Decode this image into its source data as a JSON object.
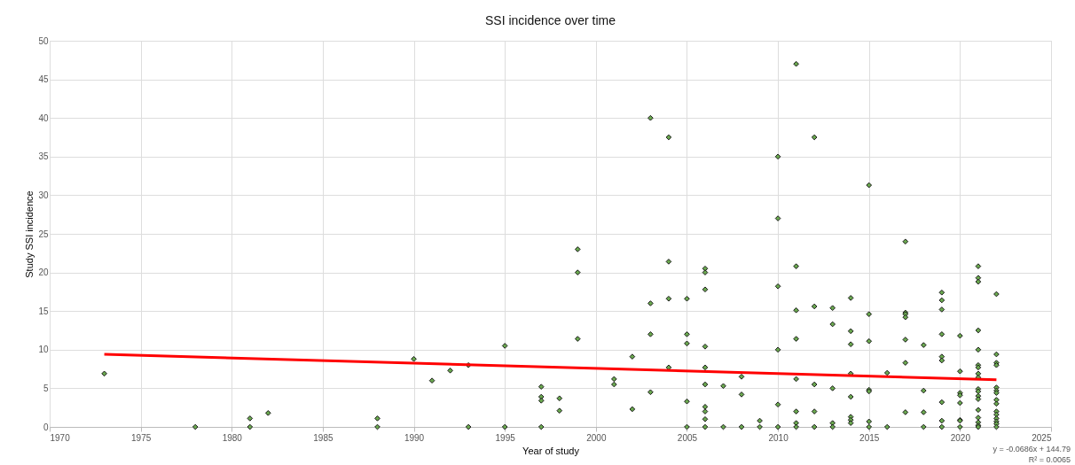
{
  "chart_data": {
    "type": "scatter",
    "title": "SSI incidence over time",
    "xlabel": "Year of study",
    "ylabel": "Study SSI incidence",
    "xlim": [
      1970,
      2025
    ],
    "xticks": [
      1970,
      1975,
      1980,
      1985,
      1990,
      1995,
      2000,
      2005,
      2010,
      2015,
      2020,
      2025
    ],
    "ylim": [
      0,
      50
    ],
    "yticks": [
      0,
      5,
      10,
      15,
      20,
      25,
      30,
      35,
      40,
      45,
      50
    ],
    "grid": true,
    "annotations": [
      "y = -0.0686x + 144.79",
      "R² = 0.0065"
    ],
    "series": [
      {
        "color": "#6aa84f",
        "marker": "diamond",
        "x": [
          1973,
          1978,
          1981,
          1981,
          1982,
          1988,
          1988,
          1990,
          1991,
          1992,
          1993,
          1993,
          1995,
          1995,
          1997,
          1997,
          1997,
          1997,
          1998,
          1998,
          1999,
          1999,
          1999,
          2001,
          2001,
          2002,
          2002,
          2003,
          2003,
          2003,
          2003,
          2004,
          2004,
          2004,
          2004,
          2005,
          2005,
          2005,
          2005,
          2005,
          2006,
          2006,
          2006,
          2006,
          2006,
          2006,
          2006,
          2006,
          2006,
          2006,
          2007,
          2007,
          2008,
          2008,
          2008,
          2009,
          2009,
          2010,
          2010,
          2010,
          2010,
          2010,
          2010,
          2011,
          2011,
          2011,
          2011,
          2011,
          2011,
          2011,
          2011,
          2012,
          2012,
          2012,
          2012,
          2012,
          2013,
          2013,
          2013,
          2013,
          2013,
          2014,
          2014,
          2014,
          2014,
          2014,
          2014,
          2014,
          2014,
          2015,
          2015,
          2015,
          2015,
          2015,
          2015,
          2015,
          2016,
          2016,
          2017,
          2017,
          2017,
          2017,
          2017,
          2017,
          2017,
          2018,
          2018,
          2018,
          2018,
          2019,
          2019,
          2019,
          2019,
          2019,
          2019,
          2019,
          2019,
          2019,
          2020,
          2020,
          2020,
          2020,
          2020,
          2020,
          2020,
          2020,
          2021,
          2021,
          2021,
          2021,
          2021,
          2021,
          2021,
          2021,
          2021,
          2021,
          2021,
          2021,
          2021,
          2021,
          2021,
          2021,
          2021,
          2021,
          2022,
          2022,
          2022,
          2022,
          2022,
          2022,
          2022,
          2022,
          2022,
          2022,
          2022,
          2022,
          2022,
          2022,
          2022
        ],
        "values": [
          6.9,
          0,
          0,
          1.1,
          1.8,
          0,
          1.1,
          8.8,
          6,
          7.3,
          8,
          0,
          10.5,
          0,
          5.2,
          3.9,
          3.4,
          0,
          3.7,
          2.1,
          23,
          20,
          11.4,
          6.2,
          5.5,
          9.1,
          2.3,
          40,
          16,
          12,
          4.5,
          37.5,
          21.4,
          16.6,
          7.7,
          16.6,
          12,
          10.8,
          3.3,
          0,
          20.5,
          20,
          17.8,
          10.4,
          7.7,
          5.5,
          2.6,
          2,
          1,
          0,
          5.3,
          0,
          6.5,
          4.2,
          0,
          0.8,
          0,
          35,
          27,
          18.2,
          10,
          2.9,
          0,
          47,
          20.8,
          15.1,
          11.4,
          6.2,
          2,
          0.5,
          0,
          37.5,
          15.6,
          5.5,
          2,
          0,
          15.4,
          13.3,
          5,
          0.5,
          0,
          16.7,
          12.4,
          10.7,
          6.9,
          3.9,
          1.3,
          0.9,
          0.5,
          31.3,
          14.6,
          11.1,
          4.8,
          4.6,
          0.7,
          0,
          7,
          0,
          24,
          14.8,
          14.6,
          14.2,
          11.3,
          8.3,
          1.9,
          10.6,
          4.7,
          1.9,
          0,
          17.4,
          16.4,
          15.2,
          12,
          9.1,
          8.6,
          3.2,
          0.8,
          0,
          11.8,
          7.2,
          4.4,
          4.1,
          3.1,
          0.9,
          0.8,
          0,
          20.8,
          19.3,
          18.8,
          12.5,
          10,
          8,
          7.7,
          6.9,
          6.4,
          4.9,
          4.6,
          4,
          3.6,
          2.2,
          1.2,
          0.6,
          0.2,
          0,
          17.2,
          9.4,
          8.3,
          8,
          5.1,
          4.7,
          4.4,
          3.5,
          3,
          2,
          1.6,
          1.1,
          0.7,
          0.4,
          0
        ]
      },
      {
        "type": "line",
        "color": "#ff0000",
        "x": [
          1973,
          2022
        ],
        "values": [
          9.4,
          6.1
        ]
      }
    ]
  }
}
